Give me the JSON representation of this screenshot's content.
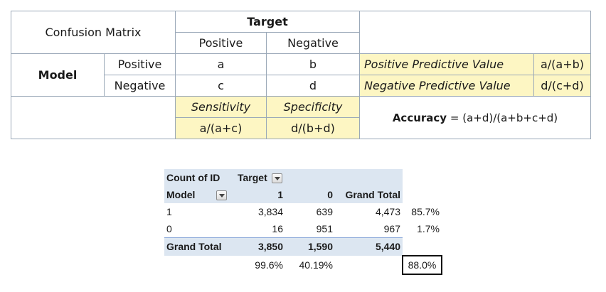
{
  "matrix": {
    "title": "Confusion Matrix",
    "target_label": "Target",
    "model_label": "Model",
    "col_positive": "Positive",
    "col_negative": "Negative",
    "row_positive": "Positive",
    "row_negative": "Negative",
    "cells": {
      "a": "a",
      "b": "b",
      "c": "c",
      "d": "d"
    },
    "ppv_label": "Positive Predictive Value",
    "ppv_formula": "a/(a+b)",
    "npv_label": "Negative Predictive Value",
    "npv_formula": "d/(c+d)",
    "sensitivity_label": "Sensitivity",
    "sensitivity_formula": "a/(a+c)",
    "specificity_label": "Specificity",
    "specificity_formula": "d/(b+d)",
    "accuracy_label": "Accuracy",
    "accuracy_formula": "= (a+d)/(a+b+c+d)",
    "colors": {
      "highlight": "#fdf6c3",
      "border": "#9aa8b8"
    }
  },
  "pivot": {
    "count_label": "Count of ID",
    "target_label": "Target",
    "model_label": "Model",
    "col_1": "1",
    "col_0": "0",
    "grand_total_label": "Grand Total",
    "rows": [
      {
        "label": "1",
        "v1": "3,834",
        "v0": "639",
        "total": "4,473",
        "pct": "85.7%"
      },
      {
        "label": "0",
        "v1": "16",
        "v0": "951",
        "total": "967",
        "pct": "1.7%"
      }
    ],
    "totals": {
      "label": "Grand Total",
      "v1": "3,850",
      "v0": "1,590",
      "total": "5,440"
    },
    "percent_row": {
      "p1": "99.6%",
      "p0": "40.19%",
      "accuracy": "88.0%"
    },
    "colors": {
      "header_fill": "#dce6f1"
    }
  }
}
